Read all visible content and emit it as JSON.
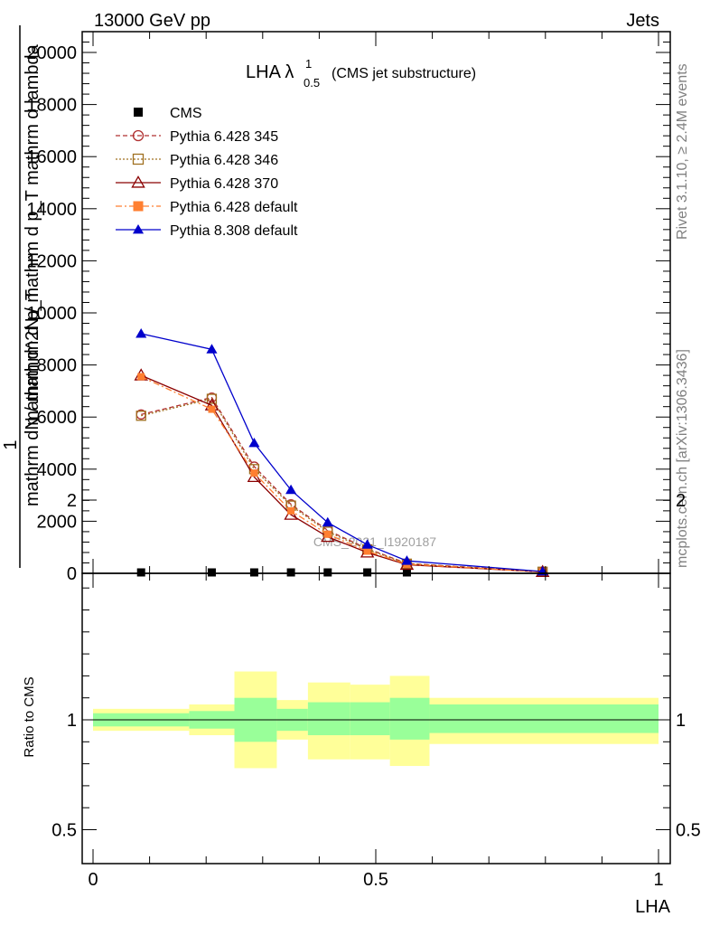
{
  "header": {
    "left": "13000 GeV pp",
    "right": "Jets"
  },
  "side": {
    "rivet": "Rivet 3.1.10, ≥ 2.4M events",
    "mcplots": "mcplots.cern.ch [arXiv:1306.3436]"
  },
  "chart_data": {
    "type": "line",
    "title": "LHA λ",
    "title_sup": "1",
    "title_sub": "0.5",
    "title_suffix": "(CMS jet substructure)",
    "watermark": "CMS_2021_I1920187",
    "xlabel": "LHA",
    "ylabel_main_numerator": "1",
    "ylabel_main_denominator": "mathrm dN / mathrm d p_T",
    "ylabel_main_right": "mathrm d^2N / mathrm d p_T mathrm d lambda",
    "ylabel_ratio": "Ratio to CMS",
    "xlim": [
      0,
      1
    ],
    "ylim_main": [
      0,
      20000
    ],
    "ylim_ratio": [
      0.4,
      2.4
    ],
    "x_ticks": [
      "0",
      "0.5",
      "1"
    ],
    "y_ticks_main": [
      "0",
      "2000",
      "4000",
      "6000",
      "8000",
      "10000",
      "12000",
      "14000",
      "16000",
      "18000",
      "20000"
    ],
    "y_ticks_ratio": [
      "0.5",
      "1",
      "2"
    ],
    "x": [
      0.085,
      0.21,
      0.285,
      0.35,
      0.415,
      0.485,
      0.555,
      0.795
    ],
    "series": [
      {
        "name": "CMS",
        "color": "#000000",
        "marker": "square-filled",
        "dash": "none",
        "values": [
          30,
          30,
          30,
          30,
          30,
          30,
          30,
          30
        ]
      },
      {
        "name": "Pythia 6.428 345",
        "color": "#b03030",
        "marker": "circle-open",
        "dash": "dashed",
        "values": [
          6100,
          6750,
          4100,
          2650,
          1650,
          950,
          380,
          60
        ]
      },
      {
        "name": "Pythia 6.428 346",
        "color": "#a07020",
        "marker": "square-open",
        "dash": "dotted",
        "values": [
          6050,
          6700,
          4000,
          2600,
          1600,
          920,
          370,
          60
        ]
      },
      {
        "name": "Pythia 6.428 370",
        "color": "#8b0000",
        "marker": "triangle-open",
        "dash": "solid",
        "values": [
          7600,
          6450,
          3700,
          2250,
          1400,
          800,
          330,
          55
        ]
      },
      {
        "name": "Pythia 6.428 default",
        "color": "#ff7f30",
        "marker": "square-filled",
        "dash": "dashdot",
        "values": [
          7550,
          6300,
          3850,
          2400,
          1500,
          850,
          350,
          55
        ]
      },
      {
        "name": "Pythia 8.308 default",
        "color": "#0000cc",
        "marker": "triangle-filled",
        "dash": "solid",
        "values": [
          9200,
          8600,
          5000,
          3200,
          1950,
          1100,
          480,
          70
        ]
      }
    ],
    "ratio_bands": {
      "edges": [
        0,
        0.17,
        0.25,
        0.325,
        0.38,
        0.455,
        0.525,
        0.595,
        1.0
      ],
      "green_low": [
        0.97,
        0.96,
        0.9,
        0.95,
        0.93,
        0.93,
        0.91,
        0.94
      ],
      "green_high": [
        1.03,
        1.04,
        1.1,
        1.05,
        1.08,
        1.08,
        1.1,
        1.07
      ],
      "yellow_low": [
        0.95,
        0.93,
        0.78,
        0.91,
        0.82,
        0.82,
        0.79,
        0.89
      ],
      "yellow_high": [
        1.05,
        1.07,
        1.22,
        1.09,
        1.17,
        1.16,
        1.2,
        1.1
      ]
    },
    "colors": {
      "green_band": "#99ff99",
      "yellow_band": "#ffff99"
    }
  }
}
